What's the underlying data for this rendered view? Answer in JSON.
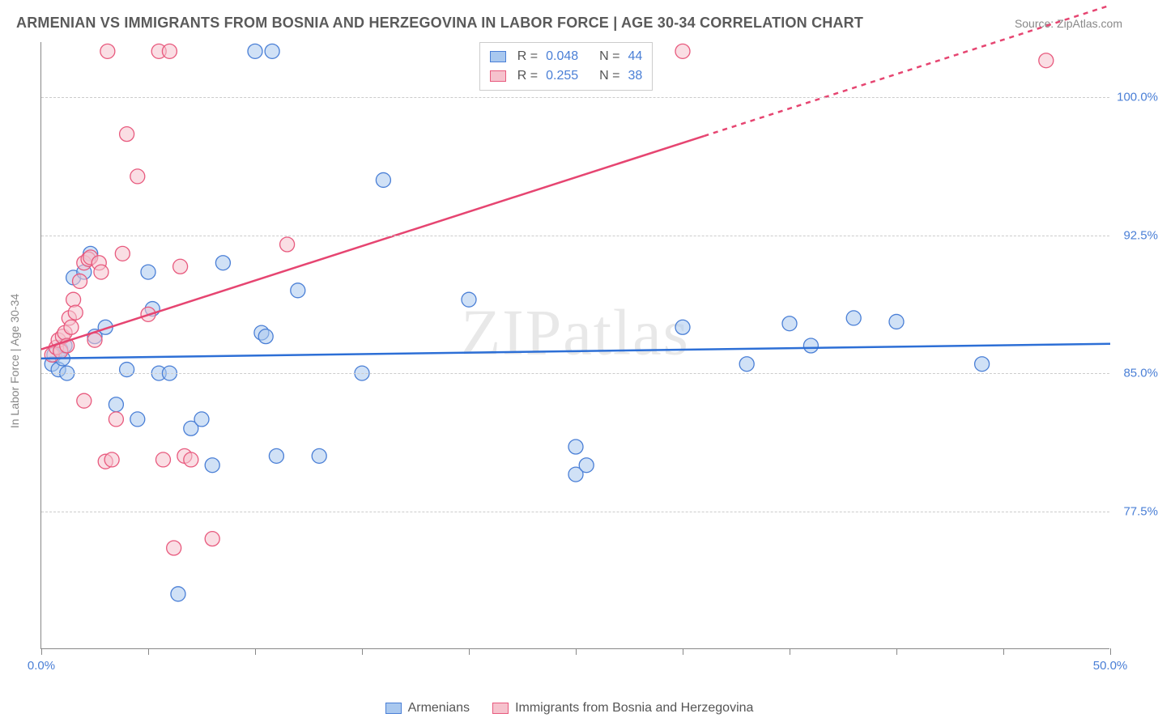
{
  "title": "ARMENIAN VS IMMIGRANTS FROM BOSNIA AND HERZEGOVINA IN LABOR FORCE | AGE 30-34 CORRELATION CHART",
  "source": "Source: ZipAtlas.com",
  "ylabel": "In Labor Force | Age 30-34",
  "watermark_zip": "ZIP",
  "watermark_atlas": "atlas",
  "chart": {
    "type": "scatter",
    "xlim": [
      0,
      50
    ],
    "ylim": [
      70,
      103
    ],
    "xtick_positions": [
      0,
      5,
      10,
      15,
      20,
      25,
      30,
      35,
      40,
      45,
      50
    ],
    "xtick_labels": {
      "0": "0.0%",
      "50": "50.0%"
    },
    "ytick_positions": [
      77.5,
      85.0,
      92.5,
      100.0
    ],
    "ytick_labels": [
      "77.5%",
      "85.0%",
      "92.5%",
      "100.0%"
    ],
    "background_color": "#ffffff",
    "grid_color": "#cccccc",
    "axis_color": "#888888",
    "marker_radius": 9,
    "marker_opacity": 0.55,
    "line_width": 2.5
  },
  "series": [
    {
      "id": "armenians",
      "label": "Armenians",
      "color_fill": "#a9c8ef",
      "color_stroke": "#4a7fd6",
      "line_color": "#2d6fd6",
      "r": "0.048",
      "n": "44",
      "trend": {
        "x1": 0,
        "y1": 85.8,
        "x2": 50,
        "y2": 86.6,
        "dashed_from": null
      },
      "points": [
        [
          0.5,
          85.5
        ],
        [
          0.6,
          86.0
        ],
        [
          0.8,
          85.2
        ],
        [
          0.9,
          86.3
        ],
        [
          1.0,
          85.8
        ],
        [
          1.1,
          86.5
        ],
        [
          1.2,
          85.0
        ],
        [
          1.5,
          90.2
        ],
        [
          2.0,
          90.5
        ],
        [
          2.3,
          91.5
        ],
        [
          2.5,
          87.0
        ],
        [
          3.0,
          87.5
        ],
        [
          3.5,
          83.3
        ],
        [
          4.0,
          85.2
        ],
        [
          4.5,
          82.5
        ],
        [
          5.0,
          90.5
        ],
        [
          5.2,
          88.5
        ],
        [
          5.5,
          85.0
        ],
        [
          6.0,
          85.0
        ],
        [
          6.4,
          73.0
        ],
        [
          7.0,
          82.0
        ],
        [
          7.5,
          82.5
        ],
        [
          8.0,
          80.0
        ],
        [
          8.5,
          91.0
        ],
        [
          10.0,
          102.5
        ],
        [
          10.3,
          87.2
        ],
        [
          10.5,
          87.0
        ],
        [
          10.8,
          102.5
        ],
        [
          11.0,
          80.5
        ],
        [
          12.0,
          89.5
        ],
        [
          13.0,
          80.5
        ],
        [
          15.0,
          85.0
        ],
        [
          16.0,
          95.5
        ],
        [
          20.0,
          89.0
        ],
        [
          25.0,
          81.0
        ],
        [
          25.0,
          79.5
        ],
        [
          25.5,
          80.0
        ],
        [
          30.0,
          87.5
        ],
        [
          33.0,
          85.5
        ],
        [
          35.0,
          87.7
        ],
        [
          36.0,
          86.5
        ],
        [
          38.0,
          88.0
        ],
        [
          40.0,
          87.8
        ],
        [
          44.0,
          85.5
        ]
      ]
    },
    {
      "id": "bosnia",
      "label": "Immigrants from Bosnia and Herzegovina",
      "color_fill": "#f6c2cd",
      "color_stroke": "#e85a7e",
      "line_color": "#e64571",
      "r": "0.255",
      "n": "38",
      "trend": {
        "x1": 0,
        "y1": 86.3,
        "x2": 50,
        "y2": 105.0,
        "dashed_from": 31
      },
      "points": [
        [
          0.5,
          86.0
        ],
        [
          0.7,
          86.4
        ],
        [
          0.8,
          86.8
        ],
        [
          0.9,
          86.2
        ],
        [
          1.0,
          87.0
        ],
        [
          1.1,
          87.2
        ],
        [
          1.2,
          86.5
        ],
        [
          1.3,
          88.0
        ],
        [
          1.4,
          87.5
        ],
        [
          1.5,
          89.0
        ],
        [
          1.6,
          88.3
        ],
        [
          1.8,
          90.0
        ],
        [
          2.0,
          91.0
        ],
        [
          2.0,
          83.5
        ],
        [
          2.2,
          91.2
        ],
        [
          2.3,
          91.3
        ],
        [
          2.5,
          86.8
        ],
        [
          2.7,
          91.0
        ],
        [
          2.8,
          90.5
        ],
        [
          3.0,
          80.2
        ],
        [
          3.1,
          102.5
        ],
        [
          3.3,
          80.3
        ],
        [
          3.5,
          82.5
        ],
        [
          3.8,
          91.5
        ],
        [
          4.0,
          98.0
        ],
        [
          4.5,
          95.7
        ],
        [
          5.0,
          88.2
        ],
        [
          5.5,
          102.5
        ],
        [
          5.7,
          80.3
        ],
        [
          6.0,
          102.5
        ],
        [
          6.2,
          75.5
        ],
        [
          6.5,
          90.8
        ],
        [
          6.7,
          80.5
        ],
        [
          7.0,
          80.3
        ],
        [
          8.0,
          76.0
        ],
        [
          11.5,
          92.0
        ],
        [
          30.0,
          102.5
        ],
        [
          47.0,
          102.0
        ]
      ]
    }
  ],
  "legend_top": {
    "r_label": "R =",
    "n_label": "N ="
  }
}
